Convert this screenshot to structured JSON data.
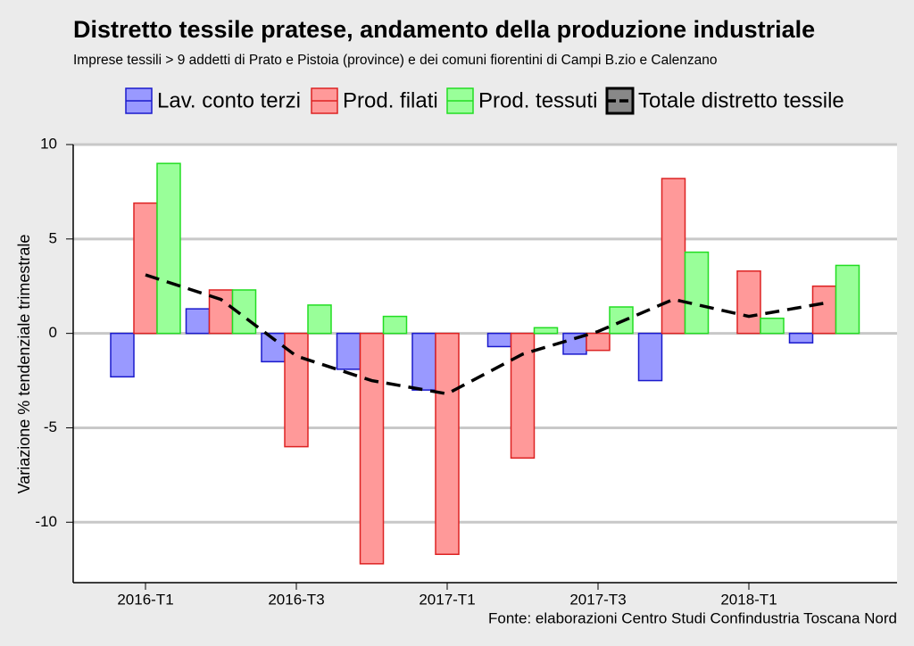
{
  "chart_data": {
    "type": "bar",
    "title": "Distretto tessile pratese, andamento della produzione industriale",
    "subtitle": "Imprese tessili > 9 addetti di Prato e Pistoia (province) e dei comuni fiorentini di Campi B.zio e Calenzano",
    "y_label": "Variazione % tendenziale trimestrale",
    "source": "Fonte: elaborazioni Centro Studi Confindustria Toscana Nord",
    "categories": [
      "2016-T1",
      null,
      "2016-T3",
      null,
      "2017-T1",
      null,
      "2017-T3",
      null,
      "2018-T1",
      null
    ],
    "ylim": [
      -13.2,
      10
    ],
    "yticks": [
      -10,
      -5,
      0,
      5,
      10
    ],
    "grid": true,
    "series": [
      {
        "name": "Lav. conto terzi",
        "type": "bar",
        "color": "#9999ff",
        "edgecolor": "#1a1acc",
        "values": [
          -2.3,
          1.3,
          -1.5,
          -1.9,
          -3.0,
          -0.7,
          -1.1,
          -2.5,
          0,
          -0.5
        ]
      },
      {
        "name": "Prod. filati",
        "type": "bar",
        "color": "#ff9999",
        "edgecolor": "#dd2222",
        "values": [
          6.9,
          2.3,
          -6.0,
          -12.2,
          -11.7,
          -6.6,
          -0.9,
          8.2,
          3.3,
          2.5
        ]
      },
      {
        "name": "Prod. tessuti",
        "type": "bar",
        "color": "#99ff99",
        "edgecolor": "#22dd22",
        "values": [
          9.0,
          2.3,
          1.5,
          0.9,
          0,
          0.3,
          1.4,
          4.3,
          0.8,
          3.6
        ]
      },
      {
        "name": "Totale distretto tessile",
        "type": "line",
        "color": "#000000",
        "values": [
          3.1,
          1.8,
          -1.2,
          -2.5,
          -3.2,
          -1.1,
          0.1,
          1.8,
          0.9,
          1.6
        ]
      }
    ]
  }
}
